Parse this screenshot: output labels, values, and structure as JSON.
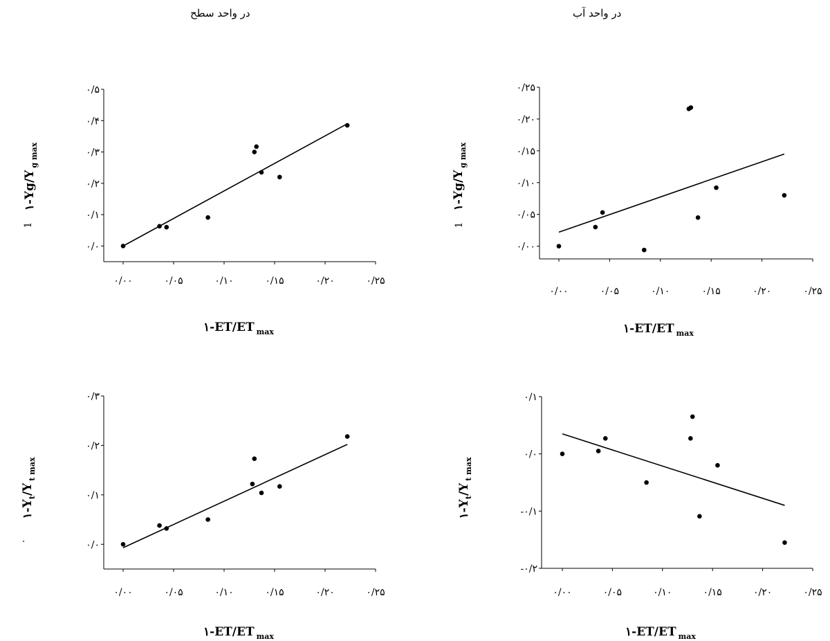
{
  "column_titles": {
    "left": "در واحد سطح",
    "right": "در واحد آب"
  },
  "side_marks": {
    "top_left": "1",
    "top_right": "1",
    "bottom_left": "."
  },
  "chart_data": [
    {
      "type": "scatter",
      "xlabel": "۱-ET/ET",
      "xlabel_sub": "max",
      "ylabel": "۱-Yg/Y",
      "ylabel_sub": "g max",
      "xlim": [
        0,
        0.25
      ],
      "ylim": [
        -0.05,
        0.5
      ],
      "xticks": [
        0,
        0.05,
        0.1,
        0.15,
        0.2,
        0.25
      ],
      "xtick_labels": [
        "۰/۰۰",
        "۰/۰۵",
        "۰/۱۰",
        "۰/۱۵",
        "۰/۲۰",
        "۰/۲۵"
      ],
      "yticks": [
        0,
        0.1,
        0.2,
        0.3,
        0.4,
        0.5
      ],
      "ytick_labels": [
        "۰/۰",
        "۰/۱",
        "۰/۲",
        "۰/۳",
        "۰/۴",
        "۰/۵"
      ],
      "points": [
        [
          0.0,
          0.0
        ],
        [
          0.036,
          0.063
        ],
        [
          0.043,
          0.06
        ],
        [
          0.084,
          0.091
        ],
        [
          0.13,
          0.3
        ],
        [
          0.132,
          0.317
        ],
        [
          0.137,
          0.235
        ],
        [
          0.155,
          0.22
        ],
        [
          0.222,
          0.385
        ]
      ],
      "trendline": [
        [
          0.0,
          0.0
        ],
        [
          0.222,
          0.39
        ]
      ]
    },
    {
      "type": "scatter",
      "xlabel": "۱-ET/ET",
      "xlabel_sub": "max",
      "ylabel": "۱-Yg/Y",
      "ylabel_sub": "g max",
      "xlim": [
        0,
        0.25
      ],
      "ylim": [
        -0.02,
        0.25
      ],
      "xticks": [
        0,
        0.05,
        0.1,
        0.15,
        0.2,
        0.25
      ],
      "xtick_labels": [
        "۰/۰۰",
        "۰/۰۵",
        "۰/۱۰",
        "۰/۱۵",
        "۰/۲۰",
        "۰/۲۵"
      ],
      "yticks": [
        0,
        0.05,
        0.1,
        0.15,
        0.2,
        0.25
      ],
      "ytick_labels": [
        "۰/۰۰",
        "۰/۰۵",
        "۰/۱۰",
        "۰/۱۵",
        "۰/۲۰",
        "۰/۲۵"
      ],
      "points": [
        [
          0.0,
          0.0
        ],
        [
          0.036,
          0.03
        ],
        [
          0.043,
          0.053
        ],
        [
          0.084,
          -0.006
        ],
        [
          0.128,
          0.216
        ],
        [
          0.13,
          0.218
        ],
        [
          0.137,
          0.045
        ],
        [
          0.155,
          0.092
        ],
        [
          0.222,
          0.08
        ]
      ],
      "trendline": [
        [
          0.0,
          0.022
        ],
        [
          0.222,
          0.145
        ]
      ]
    },
    {
      "type": "scatter",
      "xlabel": "۱-ET/ET",
      "xlabel_sub": "max",
      "ylabel": "۱-Y",
      "ylabel_mid_sub": "t",
      "ylabel_mid": "/Y",
      "ylabel_sub": "t max",
      "xlim": [
        0,
        0.25
      ],
      "ylim": [
        -0.05,
        0.3
      ],
      "xticks": [
        0,
        0.05,
        0.1,
        0.15,
        0.2,
        0.25
      ],
      "xtick_labels": [
        "۰/۰۰",
        "۰/۰۵",
        "۰/۱۰",
        "۰/۱۵",
        "۰/۲۰",
        "۰/۲۵"
      ],
      "yticks": [
        0,
        0.1,
        0.2,
        0.3
      ],
      "ytick_labels": [
        "۰/۰",
        "۰/۱",
        "۰/۲",
        "۰/۳"
      ],
      "points": [
        [
          0.0,
          0.0
        ],
        [
          0.036,
          0.038
        ],
        [
          0.043,
          0.032
        ],
        [
          0.084,
          0.05
        ],
        [
          0.128,
          0.122
        ],
        [
          0.13,
          0.173
        ],
        [
          0.137,
          0.104
        ],
        [
          0.155,
          0.117
        ],
        [
          0.222,
          0.218
        ]
      ],
      "trendline": [
        [
          0.0,
          -0.007
        ],
        [
          0.222,
          0.202
        ]
      ]
    },
    {
      "type": "scatter",
      "xlabel": "۱-ET/ET",
      "xlabel_sub": "max",
      "ylabel": "۱-Y",
      "ylabel_mid_sub": "t",
      "ylabel_mid": "/Y",
      "ylabel_sub": "t max",
      "xlim": [
        0,
        0.25
      ],
      "ylim": [
        -0.2,
        0.1
      ],
      "xticks": [
        0,
        0.05,
        0.1,
        0.15,
        0.2,
        0.25
      ],
      "xtick_labels": [
        "۰/۰۰",
        "۰/۰۵",
        "۰/۱۰",
        "۰/۱۵",
        "۰/۲۰",
        "۰/۲۵"
      ],
      "yticks": [
        -0.2,
        -0.1,
        0.0,
        0.1
      ],
      "ytick_labels": [
        "-۰/۲",
        "-۰/۱",
        "۰/۰",
        "۰/۱"
      ],
      "points": [
        [
          0.0,
          0.0
        ],
        [
          0.036,
          0.005
        ],
        [
          0.043,
          0.027
        ],
        [
          0.084,
          -0.05
        ],
        [
          0.128,
          0.027
        ],
        [
          0.13,
          0.065
        ],
        [
          0.137,
          -0.109
        ],
        [
          0.155,
          -0.02
        ],
        [
          0.222,
          -0.155
        ]
      ],
      "trendline": [
        [
          0.0,
          0.035
        ],
        [
          0.222,
          -0.09
        ]
      ]
    }
  ]
}
